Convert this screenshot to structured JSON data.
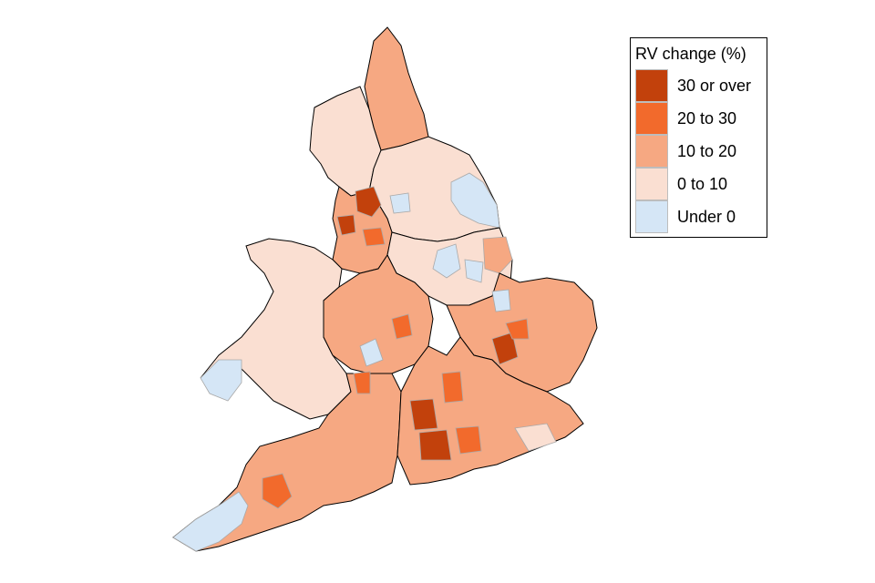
{
  "legend": {
    "title": "RV change (%)",
    "items": [
      {
        "label": "30 or over",
        "color": "#c2410c"
      },
      {
        "label": "20 to 30",
        "color": "#f26a2c"
      },
      {
        "label": "10 to 20",
        "color": "#f6a882"
      },
      {
        "label": "0 to 10",
        "color": "#fadfd2"
      },
      {
        "label": "Under 0",
        "color": "#d5e6f6"
      }
    ]
  },
  "map": {
    "region_border_color": "#000000",
    "district_border_color": "#a9a9a9"
  }
}
